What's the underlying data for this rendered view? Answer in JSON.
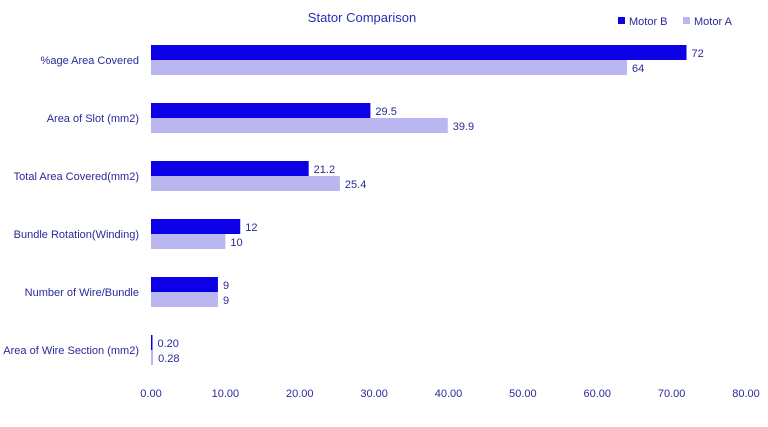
{
  "chart_data": {
    "type": "bar",
    "orientation": "horizontal",
    "title": "Stator Comparison",
    "categories": [
      "%age Area Covered",
      "Area of Slot (mm2)",
      "Total Area Covered(mm2)",
      "Bundle Rotation(Winding)",
      "Number of Wire/Bundle",
      "Area of Wire Section (mm2)"
    ],
    "series": [
      {
        "name": "Motor B",
        "color": "#0c00e6",
        "values": [
          72,
          29.5,
          21.2,
          12,
          9,
          0.2
        ],
        "labels": [
          "72",
          "29.5",
          "21.2",
          "12",
          "9",
          "0.20"
        ]
      },
      {
        "name": "Motor A",
        "color": "#b9b6f0",
        "values": [
          64,
          39.9,
          25.4,
          10,
          9,
          0.28
        ],
        "labels": [
          "64",
          "39.9",
          "25.4",
          "10",
          "9",
          "0.28"
        ]
      }
    ],
    "xlim": [
      0,
      80
    ],
    "xticks": [
      "0.00",
      "10.00",
      "20.00",
      "30.00",
      "40.00",
      "50.00",
      "60.00",
      "70.00",
      "80.00"
    ],
    "legend": "top-right",
    "grid": false
  }
}
